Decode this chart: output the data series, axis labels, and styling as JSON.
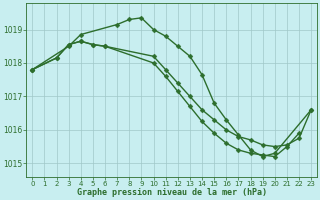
{
  "title": "Graphe pression niveau de la mer (hPa)",
  "background_color": "#c8eef0",
  "line_color": "#2d6e2d",
  "grid_color": "#a0c8c8",
  "xlim": [
    -0.5,
    23.5
  ],
  "ylim": [
    1014.6,
    1019.8
  ],
  "yticks": [
    1015,
    1016,
    1017,
    1018,
    1019
  ],
  "xticks": [
    0,
    1,
    2,
    3,
    4,
    5,
    6,
    7,
    8,
    9,
    10,
    11,
    12,
    13,
    14,
    15,
    16,
    17,
    18,
    19,
    20,
    21,
    22,
    23
  ],
  "series": [
    {
      "x": [
        0,
        1,
        2,
        3,
        4,
        5,
        6,
        7,
        8,
        9,
        10,
        11,
        12,
        13,
        14,
        15,
        16,
        17,
        18,
        19,
        20,
        21,
        22,
        23
      ],
      "y": [
        1017.8,
        null,
        null,
        1018.5,
        1018.85,
        null,
        null,
        1019.15,
        1019.3,
        1019.35,
        1019.0,
        1018.8,
        1018.5,
        1018.2,
        1017.65,
        1016.8,
        1016.3,
        1015.85,
        1015.4,
        1015.2,
        1015.3,
        null,
        null,
        1016.6
      ]
    },
    {
      "x": [
        0,
        1,
        2,
        3,
        4,
        5,
        6,
        7,
        8,
        9,
        10,
        11,
        12,
        13,
        14,
        15,
        16,
        17,
        18,
        19,
        20,
        21,
        22,
        23
      ],
      "y": [
        1017.8,
        null,
        1018.15,
        1018.55,
        1018.65,
        1018.55,
        1018.5,
        null,
        null,
        null,
        1018.2,
        1017.8,
        1017.4,
        1017.0,
        1016.6,
        1016.3,
        1016.0,
        1015.8,
        1015.7,
        1015.55,
        1015.5,
        1015.55,
        1015.75,
        1016.6
      ]
    },
    {
      "x": [
        0,
        1,
        2,
        3,
        4,
        5,
        6,
        7,
        8,
        9,
        10,
        11,
        12,
        13,
        14,
        15,
        16,
        17,
        18,
        19,
        20,
        21,
        22,
        23
      ],
      "y": [
        1017.8,
        null,
        1018.15,
        1018.55,
        1018.65,
        1018.55,
        1018.5,
        null,
        null,
        null,
        1018.0,
        1017.6,
        1017.15,
        1016.7,
        1016.25,
        1015.9,
        1015.6,
        1015.4,
        1015.3,
        1015.25,
        1015.2,
        1015.5,
        1015.9,
        null
      ]
    }
  ],
  "marker": "D",
  "markersize": 2.5,
  "linewidth": 1.0
}
